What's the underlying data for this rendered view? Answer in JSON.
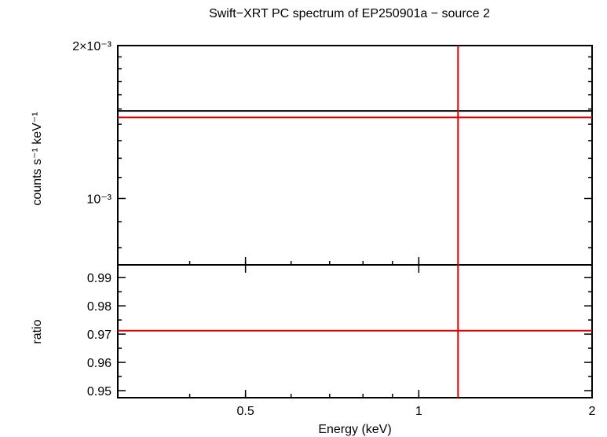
{
  "chart_data": {
    "type": "line",
    "title": "Swift−XRT PC spectrum of EP250901a − source 2",
    "xlabel": "Energy (keV)",
    "xscale": "log",
    "xlim": [
      0.3,
      2.0
    ],
    "x_ticks": [
      {
        "value": 0.5,
        "label": "0.5"
      },
      {
        "value": 1,
        "label": "1"
      },
      {
        "value": 2,
        "label": "2"
      }
    ],
    "top_panel": {
      "ylabel": "counts s⁻¹ keV⁻¹",
      "yscale": "log",
      "ylim": [
        0.00074,
        0.002
      ],
      "y_ticks": [
        {
          "value": 0.002,
          "label": "2×10⁻³"
        },
        {
          "value": 0.001,
          "label": "10⁻³"
        }
      ],
      "series": [
        {
          "name": "data",
          "color": "#000000",
          "x": [
            0.3,
            2.0
          ],
          "y": [
            0.001487,
            0.001487
          ]
        },
        {
          "name": "model",
          "color": "#e00000",
          "x": [
            0.3,
            2.0
          ],
          "y": [
            0.001444,
            0.001444
          ]
        }
      ]
    },
    "bottom_panel": {
      "ylabel": "ratio",
      "ylim": [
        0.9475,
        0.9945
      ],
      "y_ticks": [
        {
          "value": 0.95,
          "label": "0.95"
        },
        {
          "value": 0.96,
          "label": "0.96"
        },
        {
          "value": 0.97,
          "label": "0.97"
        },
        {
          "value": 0.98,
          "label": "0.98"
        },
        {
          "value": 0.99,
          "label": "0.99"
        }
      ],
      "series": [
        {
          "name": "ratio",
          "color": "#e00000",
          "x": [
            0.3,
            2.0
          ],
          "y": [
            0.9712,
            0.9712
          ]
        }
      ]
    },
    "vertical_marker": {
      "x": 1.17,
      "color": "#e00000"
    }
  }
}
